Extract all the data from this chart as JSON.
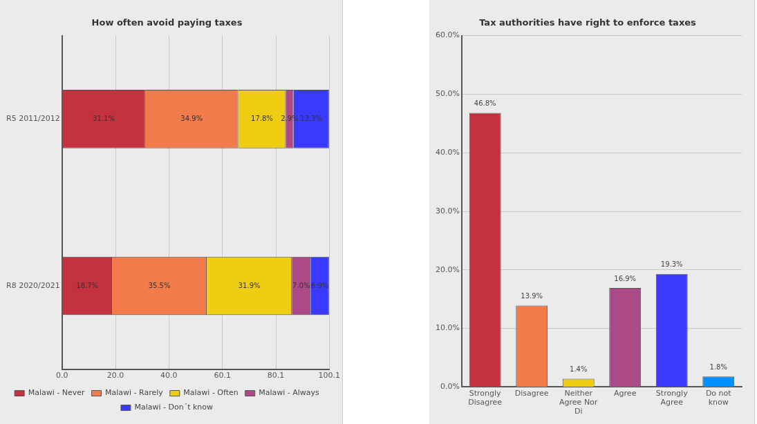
{
  "chart_data": [
    {
      "type": "bar",
      "orientation": "horizontal",
      "stacked": true,
      "title": "How often avoid paying taxes",
      "categories": [
        "R5 2011/2012",
        "R8 2020/2021"
      ],
      "series": [
        {
          "name": "Malawi - Never",
          "color": "#c4323f",
          "values": [
            31.1,
            18.7
          ],
          "value_labels": [
            "31.1%",
            "18.7%"
          ]
        },
        {
          "name": "Malawi - Rarely",
          "color": "#f27b4b",
          "values": [
            34.9,
            35.5
          ],
          "value_labels": [
            "34.9%",
            "35.5%"
          ]
        },
        {
          "name": "Malawi - Often",
          "color": "#efcd12",
          "values": [
            17.8,
            31.9
          ],
          "value_labels": [
            "17.8%",
            "31.9%"
          ]
        },
        {
          "name": "Malawi - Always",
          "color": "#ab4a87",
          "values": [
            2.9,
            7.0
          ],
          "value_labels": [
            "2.9%",
            "7.0%"
          ]
        },
        {
          "name": "Malawi - Don´t know",
          "color": "#3a3aff",
          "values": [
            13.3,
            6.9
          ],
          "value_labels": [
            "13.3%",
            "6.9%"
          ]
        }
      ],
      "xlim": [
        0,
        100.1
      ],
      "xticks": [
        {
          "value": 0,
          "label": "0.0"
        },
        {
          "value": 20,
          "label": "20.0"
        },
        {
          "value": 40,
          "label": "40.0"
        },
        {
          "value": 60.1,
          "label": "60.1"
        },
        {
          "value": 80.1,
          "label": "80.1"
        },
        {
          "value": 100.1,
          "label": "100.1"
        }
      ],
      "grid": "x",
      "legend": "bottom"
    },
    {
      "type": "bar",
      "title": "Tax authorities have right to enforce taxes",
      "categories": [
        "Strongly Disagree",
        "Disagree",
        "Neither Agree Nor Di",
        "Agree",
        "Strongly Agree",
        "Do not know"
      ],
      "values": [
        46.8,
        13.9,
        1.4,
        16.9,
        19.3,
        1.8
      ],
      "colors": [
        "#c4323f",
        "#f27b4b",
        "#efcd12",
        "#ab4a87",
        "#3a3aff",
        "#0090ff"
      ],
      "value_labels": [
        "46.8%",
        "13.9%",
        "1.4%",
        "16.9%",
        "19.3%",
        "1.8%"
      ],
      "ylim": [
        0,
        60
      ],
      "yticks": [
        {
          "value": 0,
          "label": "0.0%"
        },
        {
          "value": 10,
          "label": "10.0%"
        },
        {
          "value": 20,
          "label": "20.0%"
        },
        {
          "value": 30,
          "label": "30.0%"
        },
        {
          "value": 40,
          "label": "40.0%"
        },
        {
          "value": 50,
          "label": "50.0%"
        },
        {
          "value": 60,
          "label": "60.0%"
        }
      ],
      "grid": "y",
      "legend": false
    }
  ]
}
